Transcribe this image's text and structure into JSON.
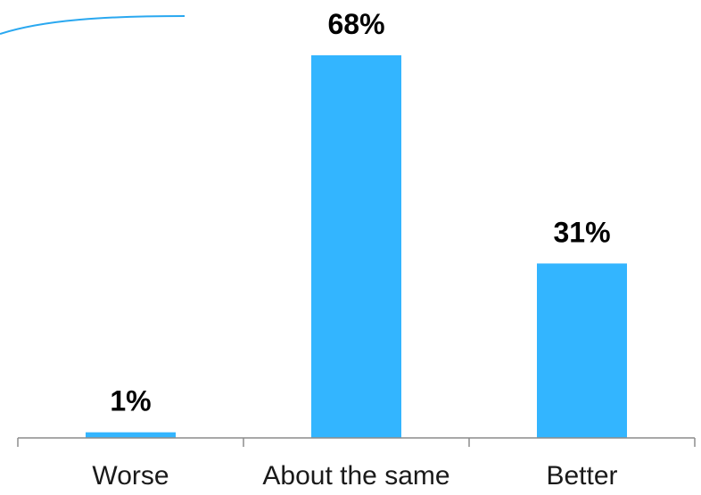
{
  "chart_data": {
    "type": "bar",
    "categories": [
      "Worse",
      "About the same",
      "Better"
    ],
    "values": [
      1,
      68,
      31
    ],
    "value_suffix": "%",
    "ylim": [
      0,
      68
    ],
    "grid": false,
    "title": "",
    "xlabel": "",
    "ylabel": ""
  },
  "colors": {
    "bar": "#33b5ff",
    "decoration": "#2aa8f0"
  }
}
